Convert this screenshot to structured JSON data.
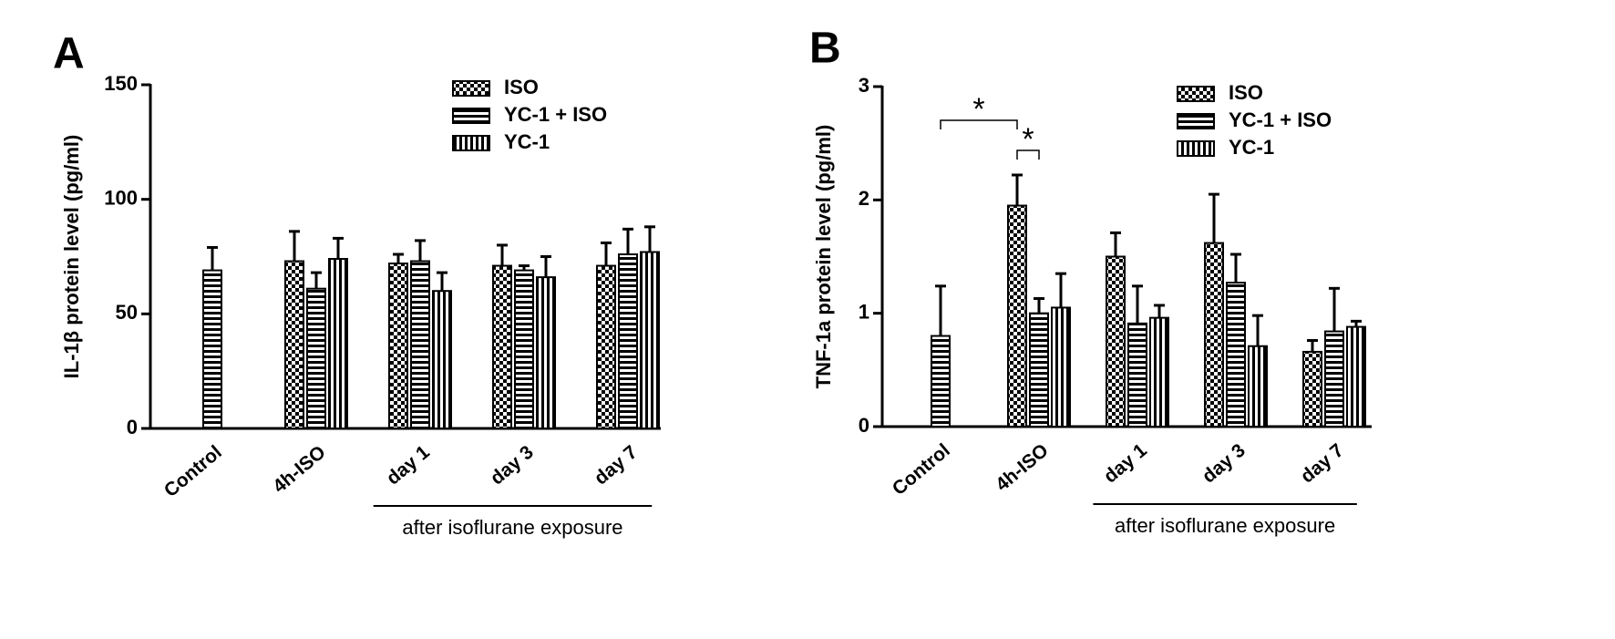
{
  "chart_data": [
    {
      "type": "bar",
      "panel": "A",
      "y_label": "IL-1β protein level (pg/ml)",
      "categories": [
        "Control",
        "4h-ISO",
        "day 1",
        "day 3",
        "day 7"
      ],
      "series": [
        {
          "name": "ISO",
          "color": "#000000",
          "pattern": "checker",
          "values": [
            null,
            73,
            72,
            71,
            71
          ],
          "errors": [
            null,
            13,
            4,
            9,
            10
          ]
        },
        {
          "name": "YC-1 + ISO",
          "color": "#000000",
          "pattern": "hstripe",
          "values": [
            69,
            61,
            73,
            69,
            76
          ],
          "errors": [
            10,
            7,
            9,
            2,
            11
          ]
        },
        {
          "name": "YC-1",
          "color": "#000000",
          "pattern": "vstripe",
          "values": [
            null,
            74,
            60,
            66,
            77
          ],
          "errors": [
            null,
            9,
            8,
            9,
            11
          ]
        }
      ],
      "ylim": [
        0,
        150
      ],
      "yticks": [
        0,
        50,
        100,
        150
      ],
      "annotation": "after isoflurane exposure",
      "legend": "top-right"
    },
    {
      "type": "bar",
      "panel": "B",
      "y_label": "TNF-1a protein level (pg/ml)",
      "categories": [
        "Control",
        "4h-ISO",
        "day 1",
        "day 3",
        "day 7"
      ],
      "series": [
        {
          "name": "ISO",
          "color": "#000000",
          "pattern": "checker",
          "values": [
            null,
            1.95,
            1.5,
            1.62,
            0.66
          ],
          "errors": [
            null,
            0.27,
            0.21,
            0.43,
            0.1
          ]
        },
        {
          "name": "YC-1 + ISO",
          "color": "#000000",
          "pattern": "hstripe",
          "values": [
            0.8,
            1.0,
            0.91,
            1.27,
            0.84
          ],
          "errors": [
            0.44,
            0.13,
            0.33,
            0.25,
            0.38
          ]
        },
        {
          "name": "YC-1",
          "color": "#000000",
          "pattern": "vstripe",
          "values": [
            null,
            1.05,
            0.96,
            0.71,
            0.88
          ],
          "errors": [
            null,
            0.3,
            0.11,
            0.27,
            0.05
          ]
        }
      ],
      "ylim": [
        0,
        3
      ],
      "yticks": [
        0,
        1,
        2,
        3
      ],
      "annotation": "after isoflurane exposure",
      "legend": "top-right",
      "significance": [
        "*",
        "*"
      ]
    }
  ]
}
